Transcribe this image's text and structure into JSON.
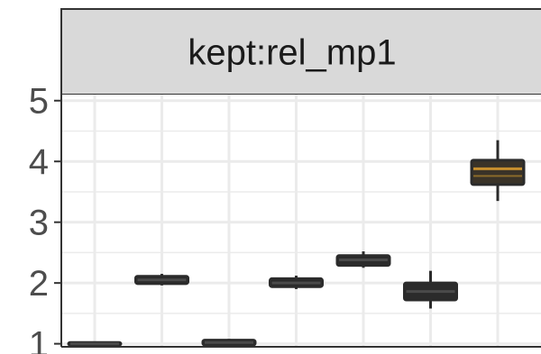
{
  "chart_data": {
    "type": "box",
    "facet_label": "kept:rel_mp1",
    "y_ticks": [
      1,
      2,
      3,
      4,
      5
    ],
    "ylim": [
      0.95,
      5.1
    ],
    "grid": true,
    "series": [
      {
        "values": {
          "min": 0.97,
          "q1": 0.98,
          "median": 1.0,
          "q3": 1.02,
          "max": 1.03
        }
      },
      {
        "values": {
          "min": 1.96,
          "q1": 1.99,
          "median": 2.05,
          "q3": 2.11,
          "max": 2.15
        }
      },
      {
        "values": {
          "min": 0.97,
          "q1": 0.98,
          "median": 1.02,
          "q3": 1.06,
          "max": 1.08
        }
      },
      {
        "values": {
          "min": 1.9,
          "q1": 1.94,
          "median": 2.0,
          "q3": 2.07,
          "max": 2.12
        }
      },
      {
        "values": {
          "min": 2.25,
          "q1": 2.29,
          "median": 2.38,
          "q3": 2.45,
          "max": 2.52
        }
      },
      {
        "values": {
          "min": 1.58,
          "q1": 1.72,
          "median": 1.86,
          "q3": 2.0,
          "max": 2.2
        }
      },
      {
        "values": {
          "min": 3.35,
          "q1": 3.62,
          "median": 3.88,
          "q3": 4.02,
          "max": 4.35
        }
      }
    ],
    "colors": {
      "box_fill": "#2b2b2b",
      "box_stroke": "#2b2b2b",
      "last_median": "#c8902e",
      "strip_bg": "#d9d9d9",
      "panel_border": "#333333",
      "grid": "#ebebeb"
    }
  }
}
